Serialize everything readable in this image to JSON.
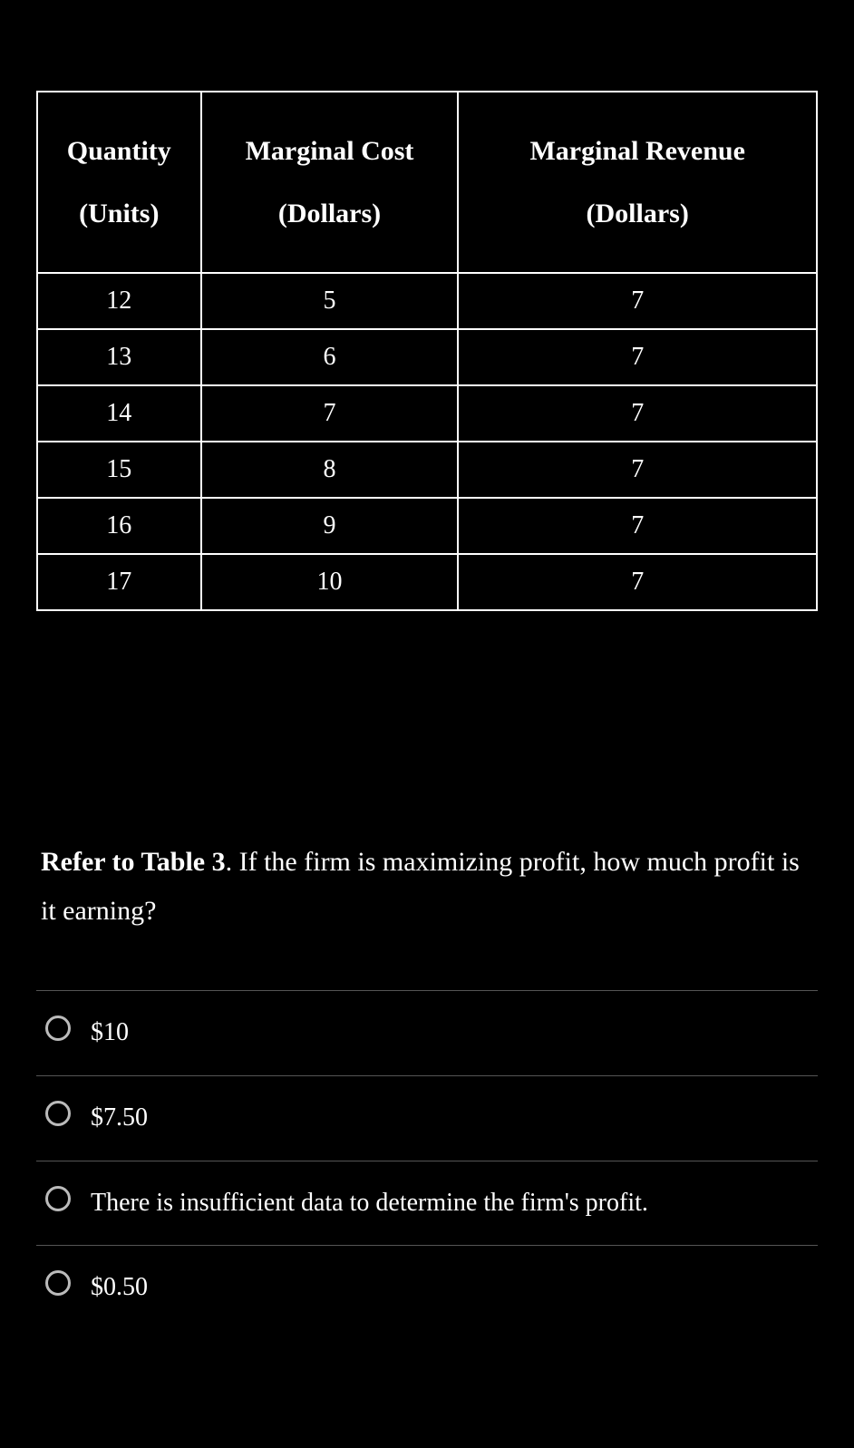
{
  "table": {
    "headers": [
      {
        "line1": "Quantity",
        "line2": "(Units)"
      },
      {
        "line1": "Marginal Cost",
        "line2": "(Dollars)"
      },
      {
        "line1": "Marginal Revenue",
        "line2": "(Dollars)"
      }
    ],
    "rows": [
      [
        "12",
        "5",
        "7"
      ],
      [
        "13",
        "6",
        "7"
      ],
      [
        "14",
        "7",
        "7"
      ],
      [
        "15",
        "8",
        "7"
      ],
      [
        "16",
        "9",
        "7"
      ],
      [
        "17",
        "10",
        "7"
      ]
    ]
  },
  "question": {
    "bold_part": "Refer to Table 3",
    "rest": ". If the firm is maximizing profit, how much profit is it earning?"
  },
  "options": [
    "$10",
    "$7.50",
    "There is insufficient data to determine the firm's profit.",
    "$0.50"
  ]
}
